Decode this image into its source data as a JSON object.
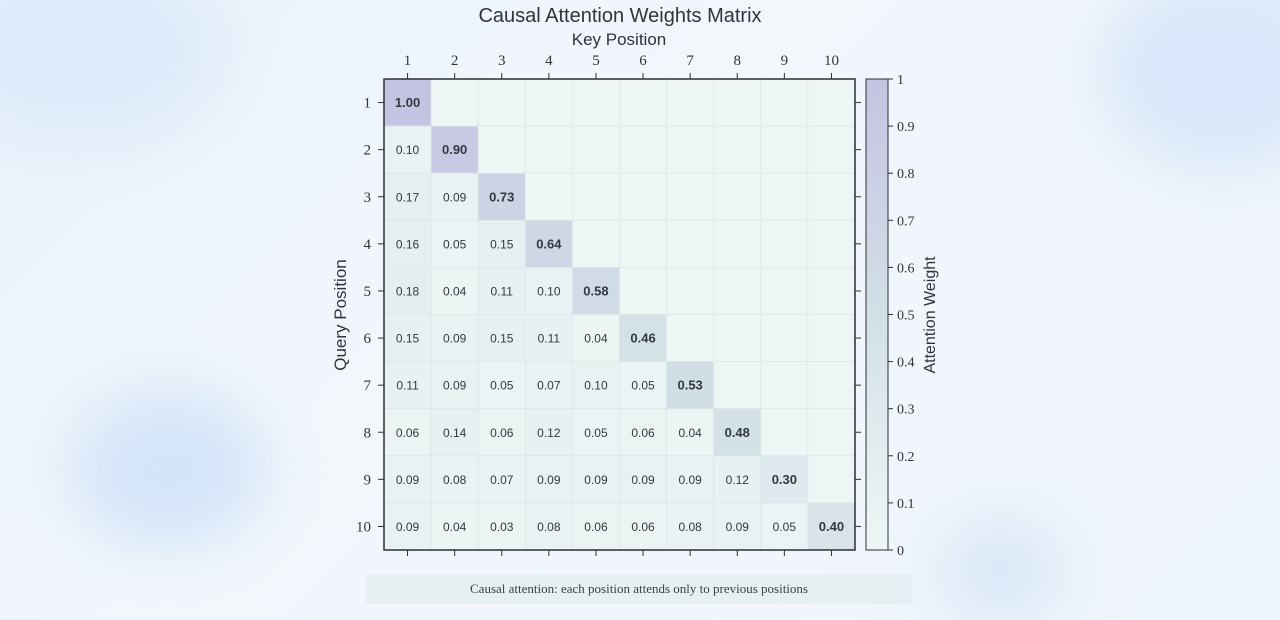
{
  "footnote": "Causal attention: each position attends only to previous positions",
  "chart_data": {
    "type": "heatmap",
    "title": "Causal Attention Weights Matrix",
    "xlabel": "Key Position",
    "ylabel": "Query Position",
    "x_ticks": [
      "1",
      "2",
      "3",
      "4",
      "5",
      "6",
      "7",
      "8",
      "9",
      "10"
    ],
    "y_ticks": [
      "1",
      "2",
      "3",
      "4",
      "5",
      "6",
      "7",
      "8",
      "9",
      "10"
    ],
    "values": [
      [
        1.0
      ],
      [
        0.1,
        0.9
      ],
      [
        0.17,
        0.09,
        0.73
      ],
      [
        0.16,
        0.05,
        0.15,
        0.64
      ],
      [
        0.18,
        0.04,
        0.11,
        0.1,
        0.58
      ],
      [
        0.15,
        0.09,
        0.15,
        0.11,
        0.04,
        0.46
      ],
      [
        0.11,
        0.09,
        0.05,
        0.07,
        0.1,
        0.05,
        0.53
      ],
      [
        0.06,
        0.14,
        0.06,
        0.12,
        0.05,
        0.06,
        0.04,
        0.48
      ],
      [
        0.09,
        0.08,
        0.07,
        0.09,
        0.09,
        0.09,
        0.09,
        0.12,
        0.3
      ],
      [
        0.09,
        0.04,
        0.03,
        0.08,
        0.06,
        0.06,
        0.08,
        0.09,
        0.05,
        0.4
      ]
    ],
    "colorbar": {
      "label": "Attention Weight",
      "range": [
        0,
        1
      ],
      "ticks": [
        "0",
        "0.1",
        "0.2",
        "0.3",
        "0.4",
        "0.5",
        "0.6",
        "0.7",
        "0.8",
        "0.9",
        "1"
      ],
      "colors": [
        "#eef6f5",
        "#d2e0e6",
        "#c5c3e2"
      ]
    }
  }
}
